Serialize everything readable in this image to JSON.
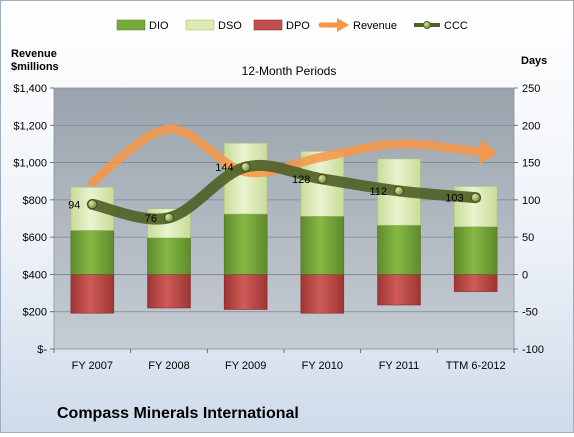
{
  "chart_data": {
    "type": "bar",
    "subtitle": "12-Month Periods",
    "footer_title": "Compass Minerals International",
    "categories": [
      "FY 2007",
      "FY 2008",
      "FY 2009",
      "FY 2010",
      "FY 2011",
      "TTM 6-2012"
    ],
    "left_axis": {
      "label_line1": "Revenue",
      "label_line2": "$millions",
      "range": [
        0,
        1400
      ],
      "ticks": [
        0,
        200,
        400,
        600,
        800,
        1000,
        1200,
        1400
      ],
      "tick_labels": [
        "$-",
        "$200",
        "$400",
        "$600",
        "$800",
        "$1,000",
        "$1,200",
        "$1,400"
      ]
    },
    "right_axis": {
      "label": "Days",
      "range": [
        -100,
        250
      ],
      "ticks": [
        -100,
        -50,
        0,
        50,
        100,
        150,
        200,
        250
      ],
      "tick_labels": [
        "-100",
        "-50",
        "0",
        "50",
        "100",
        "150",
        "200",
        "250"
      ]
    },
    "grid": true,
    "legend_position": "top",
    "legend": [
      {
        "key": "DIO",
        "label": "DIO",
        "kind": "box",
        "color": "#77a83a"
      },
      {
        "key": "DSO",
        "label": "DSO",
        "kind": "box",
        "color": "#dcebb4"
      },
      {
        "key": "DPO",
        "label": "DPO",
        "kind": "box",
        "color": "#c0504d"
      },
      {
        "key": "Revenue",
        "label": "Revenue",
        "kind": "arrow",
        "color": "#f79646"
      },
      {
        "key": "CCC",
        "label": "CCC",
        "kind": "line",
        "color": "#4f6228"
      }
    ],
    "series": [
      {
        "name": "DIO",
        "axis": "right",
        "type": "stacked-bar",
        "color": "#77a83a",
        "values": [
          59,
          49,
          81,
          78,
          66,
          64
        ]
      },
      {
        "name": "DSO",
        "axis": "right",
        "type": "stacked-bar",
        "color": "#dcebb4",
        "values": [
          58,
          39,
          95,
          87,
          89,
          54
        ]
      },
      {
        "name": "DPO",
        "axis": "right",
        "type": "negative-bar",
        "color": "#c0504d",
        "values": [
          -52,
          -45,
          -47,
          -52,
          -41,
          -23
        ]
      },
      {
        "name": "Revenue",
        "axis": "left",
        "type": "smooth-arrow",
        "color": "#f79646",
        "values": [
          895,
          1180,
          950,
          1030,
          1100,
          1060
        ]
      },
      {
        "name": "CCC",
        "axis": "right",
        "type": "smooth-line",
        "color": "#4f6228",
        "values": [
          94,
          76,
          144,
          128,
          112,
          103
        ],
        "labels": [
          "94",
          "76",
          "144",
          "128",
          "112",
          "103"
        ]
      }
    ]
  }
}
